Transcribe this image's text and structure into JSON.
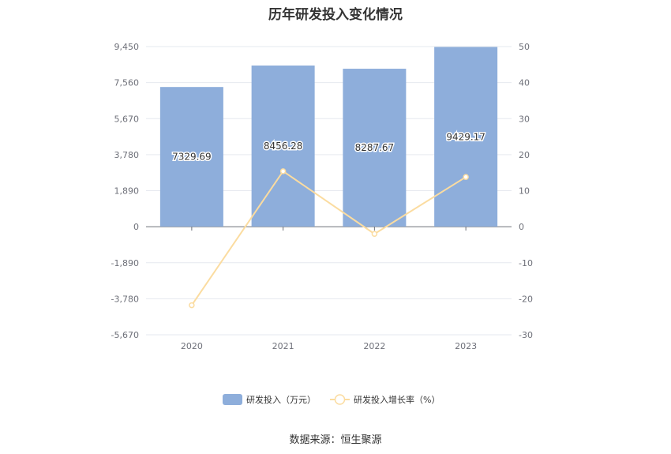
{
  "chart_data": {
    "type": "bar+line",
    "title": "历年研发投入变化情况",
    "categories": [
      "2020",
      "2021",
      "2022",
      "2023"
    ],
    "series": [
      {
        "name": "研发投入（万元）",
        "type": "bar",
        "axis": "left",
        "color": "#8eaedb",
        "values": [
          7329.69,
          8456.28,
          8287.67,
          9429.17
        ],
        "labels": [
          "7329.69",
          "8456.28",
          "8287.67",
          "9429.17"
        ]
      },
      {
        "name": "研发投入增长率（%）",
        "type": "line",
        "axis": "right",
        "color": "#fbdca0",
        "values": [
          -21.8,
          15.4,
          -2.0,
          13.8
        ]
      }
    ],
    "y_left": {
      "ticks": [
        "9,450",
        "7,560",
        "5,670",
        "3,780",
        "1,890",
        "0",
        "-1,890",
        "-3,780",
        "-5,670"
      ],
      "tick_values": [
        9450,
        7560,
        5670,
        3780,
        1890,
        0,
        -1890,
        -3780,
        -5670
      ],
      "range": [
        -5670,
        9450
      ]
    },
    "y_right": {
      "ticks": [
        "50",
        "40",
        "30",
        "20",
        "10",
        "0",
        "-10",
        "-20",
        "-30"
      ],
      "tick_values": [
        50,
        40,
        30,
        20,
        10,
        0,
        -10,
        -20,
        -30
      ],
      "range": [
        -30,
        50
      ]
    },
    "grid": true,
    "legend_position": "bottom-center"
  },
  "source_text": "数据来源：恒生聚源"
}
